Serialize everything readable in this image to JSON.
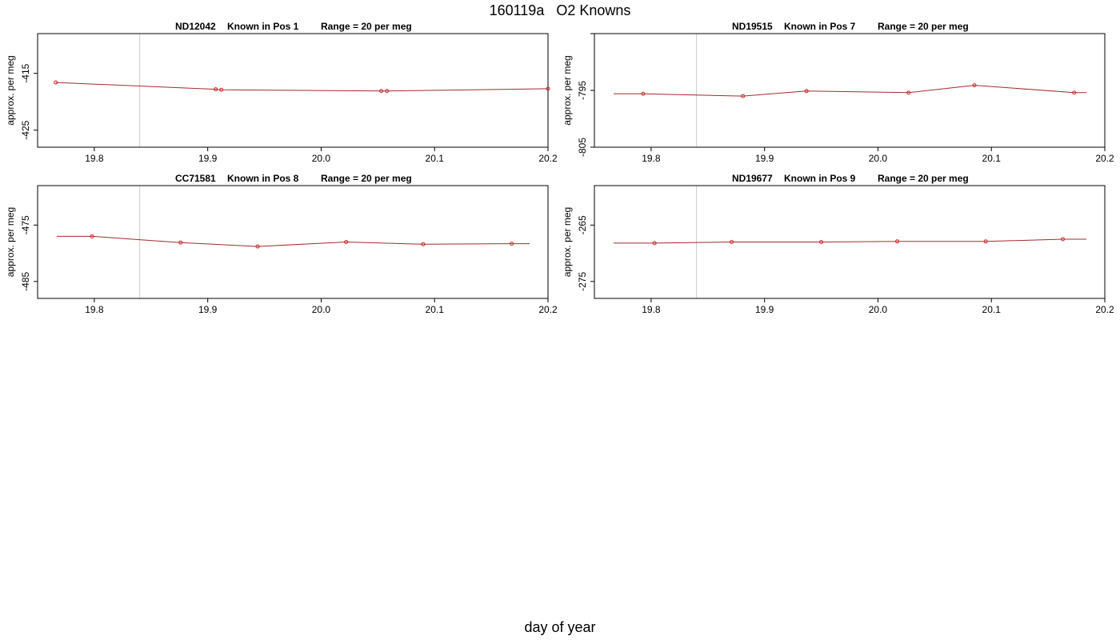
{
  "title": "160119a   O2 Knowns",
  "xlabel": "day of year",
  "chart_data": [
    {
      "type": "line",
      "title_parts": [
        "ND12042",
        "Known in Pos 1",
        "Range = 20 per meg"
      ],
      "ylabel": "approx. per meg",
      "xlim": [
        19.75,
        20.2
      ],
      "ylim": [
        -428,
        -408
      ],
      "x_ticks": [
        "19.8",
        "19.9",
        "20.0",
        "20.1",
        "20.2"
      ],
      "x_tick_values": [
        19.8,
        19.9,
        20.0,
        20.1,
        20.2
      ],
      "y_ticks": [
        "-415",
        "-425"
      ],
      "y_tick_values": [
        -415,
        -425
      ],
      "vlines": [
        19.84,
        20.2
      ],
      "series": [
        {
          "x": [
            19.766,
            19.907,
            19.912,
            20.053,
            20.058,
            20.2
          ],
          "y": [
            -416.6,
            -417.8,
            -417.9,
            -418.1,
            -418.1,
            -417.7
          ]
        }
      ]
    },
    {
      "type": "line",
      "title_parts": [
        "ND19515",
        "Known in Pos 7",
        "Range = 20 per meg"
      ],
      "ylabel": "approx. per meg",
      "xlim": [
        19.75,
        20.2
      ],
      "ylim": [
        -805,
        -785
      ],
      "x_ticks": [
        "19.8",
        "19.9",
        "20.0",
        "20.1",
        "20.2"
      ],
      "x_tick_values": [
        19.8,
        19.9,
        20.0,
        20.1,
        20.2
      ],
      "y_ticks": [
        "-795",
        "-805"
      ],
      "y_tick_values": [
        -795,
        -805
      ],
      "vlines": [
        19.84,
        20.2
      ],
      "series": [
        {
          "x": [
            19.793,
            19.881,
            19.937,
            20.027,
            20.085,
            20.173
          ],
          "y": [
            -795.6,
            -796.0,
            -795.1,
            -795.4,
            -794.1,
            -795.4
          ]
        }
      ]
    },
    {
      "type": "line",
      "title_parts": [
        "CC71581",
        "Known in Pos 8",
        "Range = 20 per meg"
      ],
      "ylabel": "approx. per meg",
      "xlim": [
        19.75,
        20.2
      ],
      "ylim": [
        -488,
        -468
      ],
      "x_ticks": [
        "19.8",
        "19.9",
        "20.0",
        "20.1",
        "20.2"
      ],
      "x_tick_values": [
        19.8,
        19.9,
        20.0,
        20.1,
        20.2
      ],
      "y_ticks": [
        "-475",
        "-485"
      ],
      "y_tick_values": [
        -475,
        -485
      ],
      "vlines": [
        19.84,
        20.2
      ],
      "series": [
        {
          "x": [
            19.798,
            19.876,
            19.944,
            20.022,
            20.09,
            20.168
          ],
          "y": [
            -477.0,
            -478.1,
            -478.8,
            -478.0,
            -478.4,
            -478.3
          ]
        }
      ]
    },
    {
      "type": "line",
      "title_parts": [
        "ND19677",
        "Known in Pos 9",
        "Range = 20 per meg"
      ],
      "ylabel": "approx. per meg",
      "xlim": [
        19.75,
        20.2
      ],
      "ylim": [
        -278,
        -258
      ],
      "x_ticks": [
        "19.8",
        "19.9",
        "20.0",
        "20.1",
        "20.2"
      ],
      "x_tick_values": [
        19.8,
        19.9,
        20.0,
        20.1,
        20.2
      ],
      "y_ticks": [
        "-265",
        "-275"
      ],
      "y_tick_values": [
        -265,
        -275
      ],
      "vlines": [
        19.84,
        20.2
      ],
      "series": [
        {
          "x": [
            19.803,
            19.871,
            19.95,
            20.017,
            20.095,
            20.163
          ],
          "y": [
            -268.2,
            -268.0,
            -268.0,
            -267.9,
            -267.9,
            -267.5
          ]
        }
      ]
    }
  ]
}
